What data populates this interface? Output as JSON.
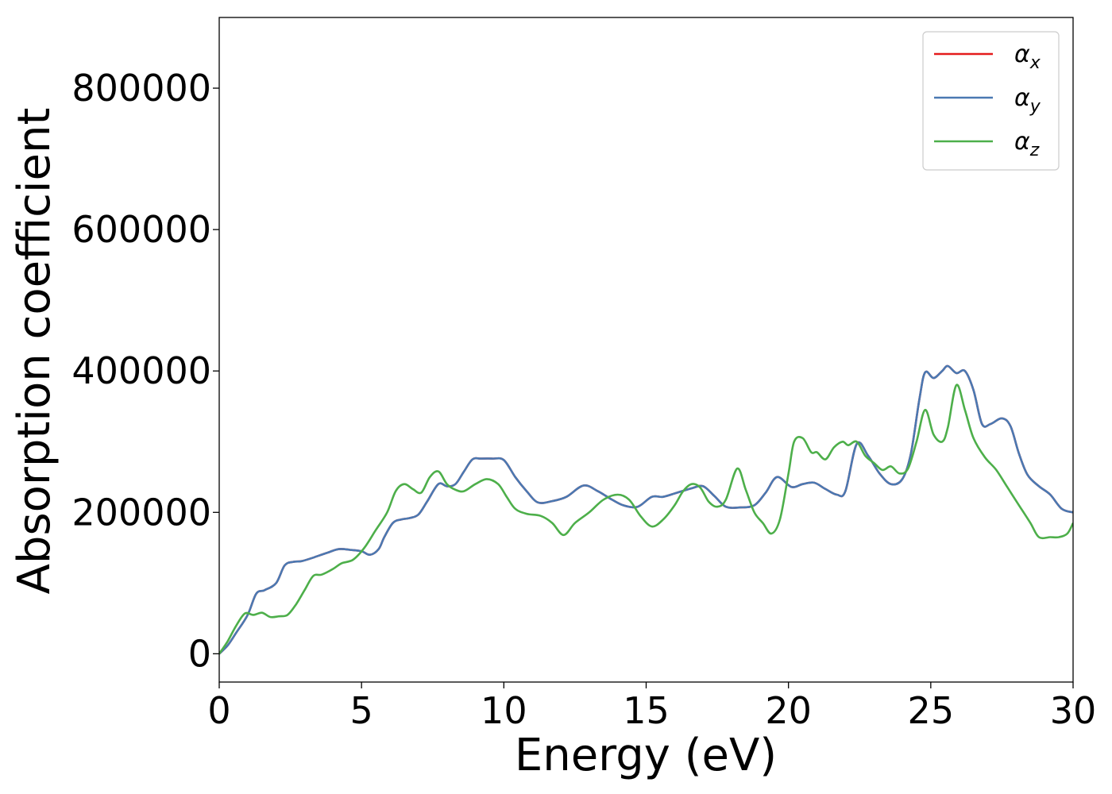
{
  "chart_data": {
    "type": "line",
    "title": "",
    "xlabel": "Energy (eV)",
    "ylabel": "Absorption coefficient",
    "xlim": [
      0,
      30
    ],
    "ylim": [
      -40000,
      900000
    ],
    "xticks": [
      0,
      5,
      10,
      15,
      20,
      25,
      30
    ],
    "xtick_labels": [
      "0",
      "5",
      "10",
      "15",
      "20",
      "25",
      "30"
    ],
    "yticks": [
      0,
      200000,
      400000,
      600000,
      800000
    ],
    "ytick_labels": [
      "0",
      "200000",
      "400000",
      "600000",
      "800000"
    ],
    "grid": false,
    "legend_position": "top-right",
    "series": [
      {
        "name": "α",
        "subscript": "x",
        "color": "#e41a1c",
        "x": [
          0,
          0.3,
          0.6,
          1.0,
          1.3,
          1.6,
          2.0,
          2.3,
          2.6,
          2.9,
          3.3,
          3.8,
          4.2,
          4.6,
          5.0,
          5.3,
          5.6,
          5.8,
          6.1,
          6.4,
          6.7,
          7.0,
          7.3,
          7.7,
          8.0,
          8.3,
          8.6,
          8.9,
          9.2,
          9.6,
          10.0,
          10.4,
          10.8,
          11.2,
          11.7,
          12.2,
          12.8,
          13.3,
          13.8,
          14.2,
          14.7,
          15.2,
          15.6,
          16.1,
          16.6,
          17.0,
          17.4,
          17.8,
          18.3,
          18.8,
          19.2,
          19.6,
          20.1,
          20.5,
          20.9,
          21.3,
          21.7,
          22.0,
          22.4,
          22.8,
          23.2,
          23.6,
          24.0,
          24.3,
          24.6,
          24.8,
          25.1,
          25.4,
          25.6,
          25.9,
          26.2,
          26.5,
          26.8,
          27.1,
          27.5,
          27.8,
          28.1,
          28.4,
          28.8,
          29.2,
          29.6,
          30.0
        ],
        "values": [
          0,
          12000,
          30000,
          55000,
          85000,
          90000,
          100000,
          125000,
          130000,
          131000,
          136000,
          143000,
          148000,
          147000,
          145000,
          140000,
          148000,
          165000,
          185000,
          190000,
          192000,
          197000,
          215000,
          240000,
          237000,
          240000,
          258000,
          275000,
          276000,
          276000,
          274000,
          250000,
          230000,
          214000,
          216000,
          222000,
          238000,
          230000,
          218000,
          210000,
          208000,
          222000,
          222000,
          228000,
          234000,
          237000,
          223000,
          208000,
          207000,
          210000,
          228000,
          250000,
          236000,
          240000,
          242000,
          233000,
          225000,
          230000,
          297000,
          280000,
          255000,
          240000,
          247000,
          283000,
          360000,
          398000,
          390000,
          400000,
          407000,
          397000,
          400000,
          373000,
          325000,
          325000,
          333000,
          322000,
          283000,
          253000,
          237000,
          225000,
          205000,
          200000
        ]
      },
      {
        "name": "α",
        "subscript": "y",
        "color": "#4a79b2",
        "x": [
          0,
          0.3,
          0.6,
          1.0,
          1.3,
          1.6,
          2.0,
          2.3,
          2.6,
          2.9,
          3.3,
          3.8,
          4.2,
          4.6,
          5.0,
          5.3,
          5.6,
          5.8,
          6.1,
          6.4,
          6.7,
          7.0,
          7.3,
          7.7,
          8.0,
          8.3,
          8.6,
          8.9,
          9.2,
          9.6,
          10.0,
          10.4,
          10.8,
          11.2,
          11.7,
          12.2,
          12.8,
          13.3,
          13.8,
          14.2,
          14.7,
          15.2,
          15.6,
          16.1,
          16.6,
          17.0,
          17.4,
          17.8,
          18.3,
          18.8,
          19.2,
          19.6,
          20.1,
          20.5,
          20.9,
          21.3,
          21.7,
          22.0,
          22.4,
          22.8,
          23.2,
          23.6,
          24.0,
          24.3,
          24.6,
          24.8,
          25.1,
          25.4,
          25.6,
          25.9,
          26.2,
          26.5,
          26.8,
          27.1,
          27.5,
          27.8,
          28.1,
          28.4,
          28.8,
          29.2,
          29.6,
          30.0
        ],
        "values": [
          0,
          12000,
          30000,
          55000,
          85000,
          90000,
          100000,
          125000,
          130000,
          131000,
          136000,
          143000,
          148000,
          147000,
          145000,
          140000,
          148000,
          165000,
          185000,
          190000,
          192000,
          197000,
          215000,
          240000,
          237000,
          240000,
          258000,
          275000,
          276000,
          276000,
          274000,
          250000,
          230000,
          214000,
          216000,
          222000,
          238000,
          230000,
          218000,
          210000,
          208000,
          222000,
          222000,
          228000,
          234000,
          237000,
          223000,
          208000,
          207000,
          210000,
          228000,
          250000,
          236000,
          240000,
          242000,
          233000,
          225000,
          230000,
          297000,
          280000,
          255000,
          240000,
          247000,
          283000,
          360000,
          398000,
          390000,
          400000,
          407000,
          397000,
          400000,
          373000,
          325000,
          325000,
          333000,
          322000,
          283000,
          253000,
          237000,
          225000,
          205000,
          200000
        ]
      },
      {
        "name": "α",
        "subscript": "z",
        "color": "#4daf4a",
        "x": [
          0,
          0.3,
          0.6,
          0.9,
          1.2,
          1.5,
          1.8,
          2.1,
          2.4,
          2.7,
          3.0,
          3.3,
          3.6,
          4.0,
          4.3,
          4.7,
          5.1,
          5.5,
          5.9,
          6.2,
          6.5,
          6.8,
          7.1,
          7.4,
          7.7,
          8.0,
          8.3,
          8.6,
          9.0,
          9.4,
          9.8,
          10.1,
          10.4,
          10.8,
          11.3,
          11.7,
          12.1,
          12.5,
          13.0,
          13.5,
          14.0,
          14.4,
          14.8,
          15.2,
          15.6,
          16.0,
          16.3,
          16.6,
          16.9,
          17.2,
          17.5,
          17.8,
          18.2,
          18.5,
          18.8,
          19.1,
          19.4,
          19.7,
          20.0,
          20.2,
          20.5,
          20.8,
          21.0,
          21.3,
          21.6,
          21.9,
          22.1,
          22.4,
          22.7,
          23.0,
          23.3,
          23.6,
          23.9,
          24.2,
          24.5,
          24.8,
          25.1,
          25.4,
          25.6,
          25.9,
          26.2,
          26.5,
          26.9,
          27.3,
          27.7,
          28.1,
          28.5,
          28.8,
          29.2,
          29.5,
          29.8,
          30.0
        ],
        "values": [
          0,
          18000,
          40000,
          57000,
          55000,
          58000,
          52000,
          53000,
          55000,
          70000,
          90000,
          110000,
          112000,
          120000,
          128000,
          133000,
          150000,
          175000,
          200000,
          230000,
          240000,
          233000,
          228000,
          250000,
          258000,
          240000,
          232000,
          230000,
          240000,
          247000,
          240000,
          222000,
          205000,
          198000,
          195000,
          185000,
          168000,
          185000,
          200000,
          218000,
          225000,
          218000,
          195000,
          180000,
          190000,
          210000,
          230000,
          240000,
          235000,
          215000,
          208000,
          218000,
          262000,
          232000,
          200000,
          185000,
          170000,
          190000,
          255000,
          300000,
          305000,
          285000,
          285000,
          275000,
          292000,
          300000,
          295000,
          300000,
          280000,
          270000,
          260000,
          265000,
          255000,
          262000,
          300000,
          345000,
          310000,
          300000,
          320000,
          380000,
          345000,
          305000,
          278000,
          260000,
          235000,
          210000,
          185000,
          165000,
          165000,
          165000,
          170000,
          185000
        ]
      }
    ]
  }
}
